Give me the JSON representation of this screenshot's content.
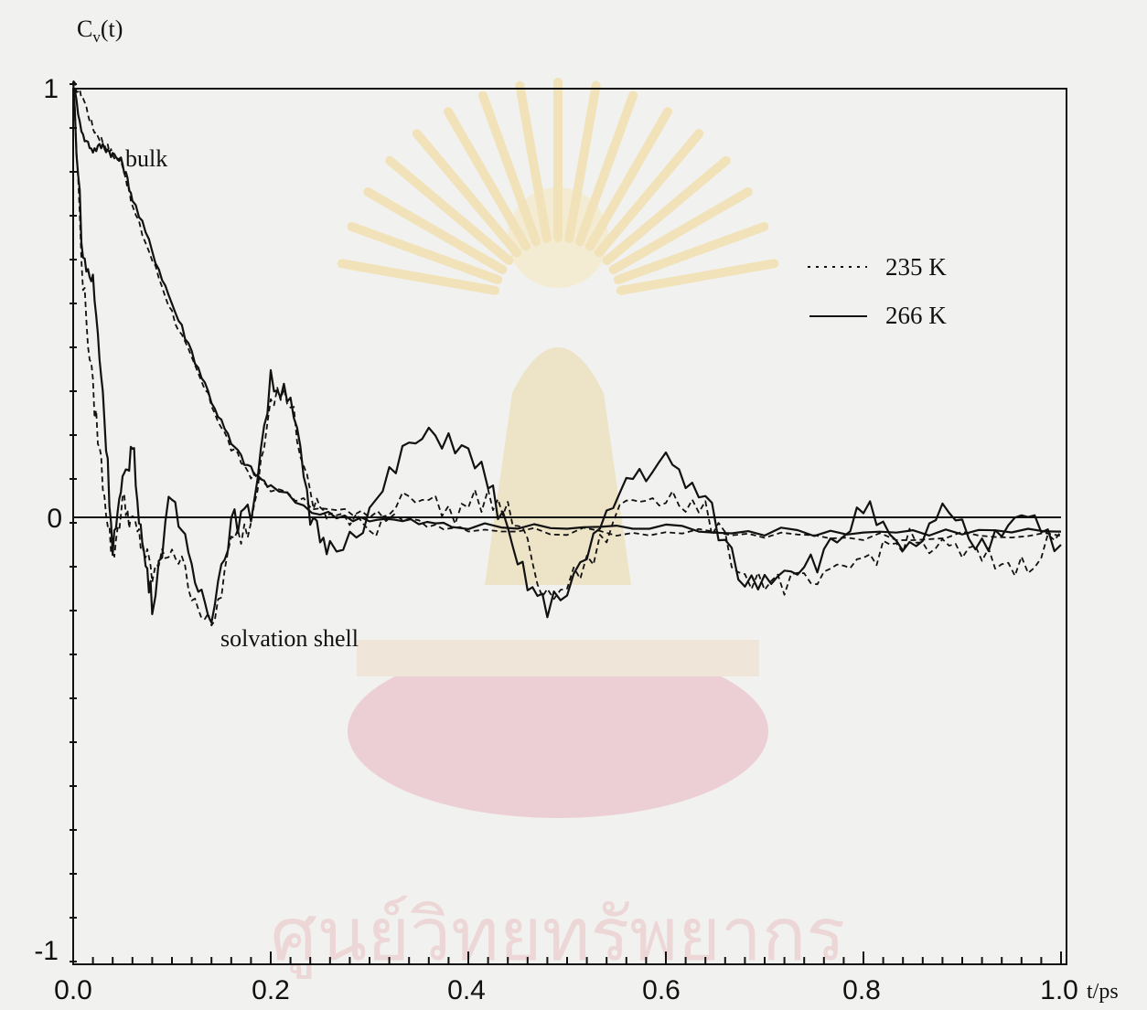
{
  "chart_data": {
    "type": "line",
    "ylabel": "C",
    "ylabel_sub": "v",
    "ylabel_tail": "(t)",
    "xlabel": "t/ps",
    "xlim": [
      0.0,
      1.0
    ],
    "ylim": [
      -1,
      1
    ],
    "x_ticks": [
      "0.0",
      "0.2",
      "0.4",
      "0.6",
      "0.8",
      "1.0"
    ],
    "y_ticks": [
      "1",
      "0",
      "-1"
    ],
    "annotations": [
      "bulk",
      "solvation shell"
    ],
    "legend": {
      "position": "top-right",
      "entries": [
        "235 K",
        "266 K"
      ]
    },
    "series": [
      {
        "name": "235 K",
        "region": "bulk",
        "style": "dotted",
        "x": [
          0.0,
          0.01,
          0.02,
          0.03,
          0.04,
          0.05,
          0.06,
          0.08,
          0.1,
          0.12,
          0.14,
          0.16,
          0.18,
          0.2,
          0.25,
          0.3,
          0.35,
          0.4,
          0.5,
          0.6,
          0.7,
          0.8,
          0.9,
          1.0
        ],
        "y": [
          1.0,
          0.97,
          0.9,
          0.87,
          0.84,
          0.82,
          0.72,
          0.6,
          0.48,
          0.37,
          0.27,
          0.17,
          0.11,
          0.08,
          0.03,
          0.02,
          0.0,
          -0.01,
          -0.02,
          -0.02,
          -0.03,
          -0.03,
          -0.03,
          -0.03
        ]
      },
      {
        "name": "266 K",
        "region": "bulk",
        "style": "solid",
        "x": [
          0.0,
          0.01,
          0.02,
          0.03,
          0.04,
          0.05,
          0.06,
          0.08,
          0.1,
          0.12,
          0.14,
          0.16,
          0.18,
          0.2,
          0.25,
          0.3,
          0.35,
          0.4,
          0.5,
          0.6,
          0.7,
          0.8,
          0.9,
          1.0
        ],
        "y": [
          1.0,
          0.88,
          0.85,
          0.86,
          0.84,
          0.82,
          0.74,
          0.62,
          0.5,
          0.39,
          0.28,
          0.18,
          0.12,
          0.08,
          0.02,
          0.01,
          0.0,
          -0.01,
          -0.01,
          -0.01,
          -0.02,
          -0.02,
          -0.02,
          -0.02
        ]
      },
      {
        "name": "235 K",
        "region": "solvation shell",
        "style": "dotted",
        "x": [
          0.0,
          0.01,
          0.02,
          0.03,
          0.04,
          0.05,
          0.06,
          0.07,
          0.08,
          0.1,
          0.12,
          0.14,
          0.16,
          0.18,
          0.2,
          0.22,
          0.24,
          0.26,
          0.3,
          0.34,
          0.38,
          0.42,
          0.45,
          0.48,
          0.52,
          0.56,
          0.6,
          0.64,
          0.68,
          0.72,
          0.76,
          0.8,
          0.84,
          0.88,
          0.92,
          0.96,
          1.0
        ],
        "y": [
          1.0,
          0.55,
          0.3,
          0.1,
          -0.08,
          0.05,
          0.0,
          -0.05,
          -0.12,
          -0.05,
          -0.15,
          -0.25,
          -0.05,
          0.0,
          0.3,
          0.28,
          0.05,
          0.02,
          -0.02,
          0.08,
          0.02,
          0.06,
          0.0,
          -0.18,
          -0.1,
          0.05,
          0.07,
          0.02,
          -0.12,
          -0.14,
          -0.14,
          -0.08,
          -0.04,
          -0.06,
          -0.08,
          -0.1,
          -0.02
        ]
      },
      {
        "name": "266 K",
        "region": "solvation shell",
        "style": "solid",
        "x": [
          0.0,
          0.01,
          0.02,
          0.03,
          0.04,
          0.05,
          0.06,
          0.07,
          0.08,
          0.1,
          0.12,
          0.14,
          0.16,
          0.18,
          0.2,
          0.22,
          0.24,
          0.26,
          0.3,
          0.34,
          0.38,
          0.42,
          0.45,
          0.48,
          0.52,
          0.56,
          0.6,
          0.64,
          0.68,
          0.72,
          0.76,
          0.8,
          0.84,
          0.88,
          0.92,
          0.96,
          1.0
        ],
        "y": [
          1.0,
          0.6,
          0.55,
          0.3,
          -0.05,
          0.08,
          0.18,
          -0.05,
          -0.18,
          0.08,
          -0.12,
          -0.2,
          0.0,
          0.02,
          0.32,
          0.3,
          0.0,
          -0.06,
          0.02,
          0.18,
          0.2,
          0.1,
          -0.1,
          -0.2,
          -0.08,
          0.1,
          0.14,
          0.05,
          -0.14,
          -0.1,
          -0.08,
          0.04,
          -0.08,
          0.02,
          -0.06,
          0.04,
          -0.05
        ]
      }
    ]
  },
  "watermark": {
    "text": "ศูนย์วิทยทรัพยากร",
    "emblem": "crest-emblem-icon",
    "color": "#e8c7b5"
  }
}
